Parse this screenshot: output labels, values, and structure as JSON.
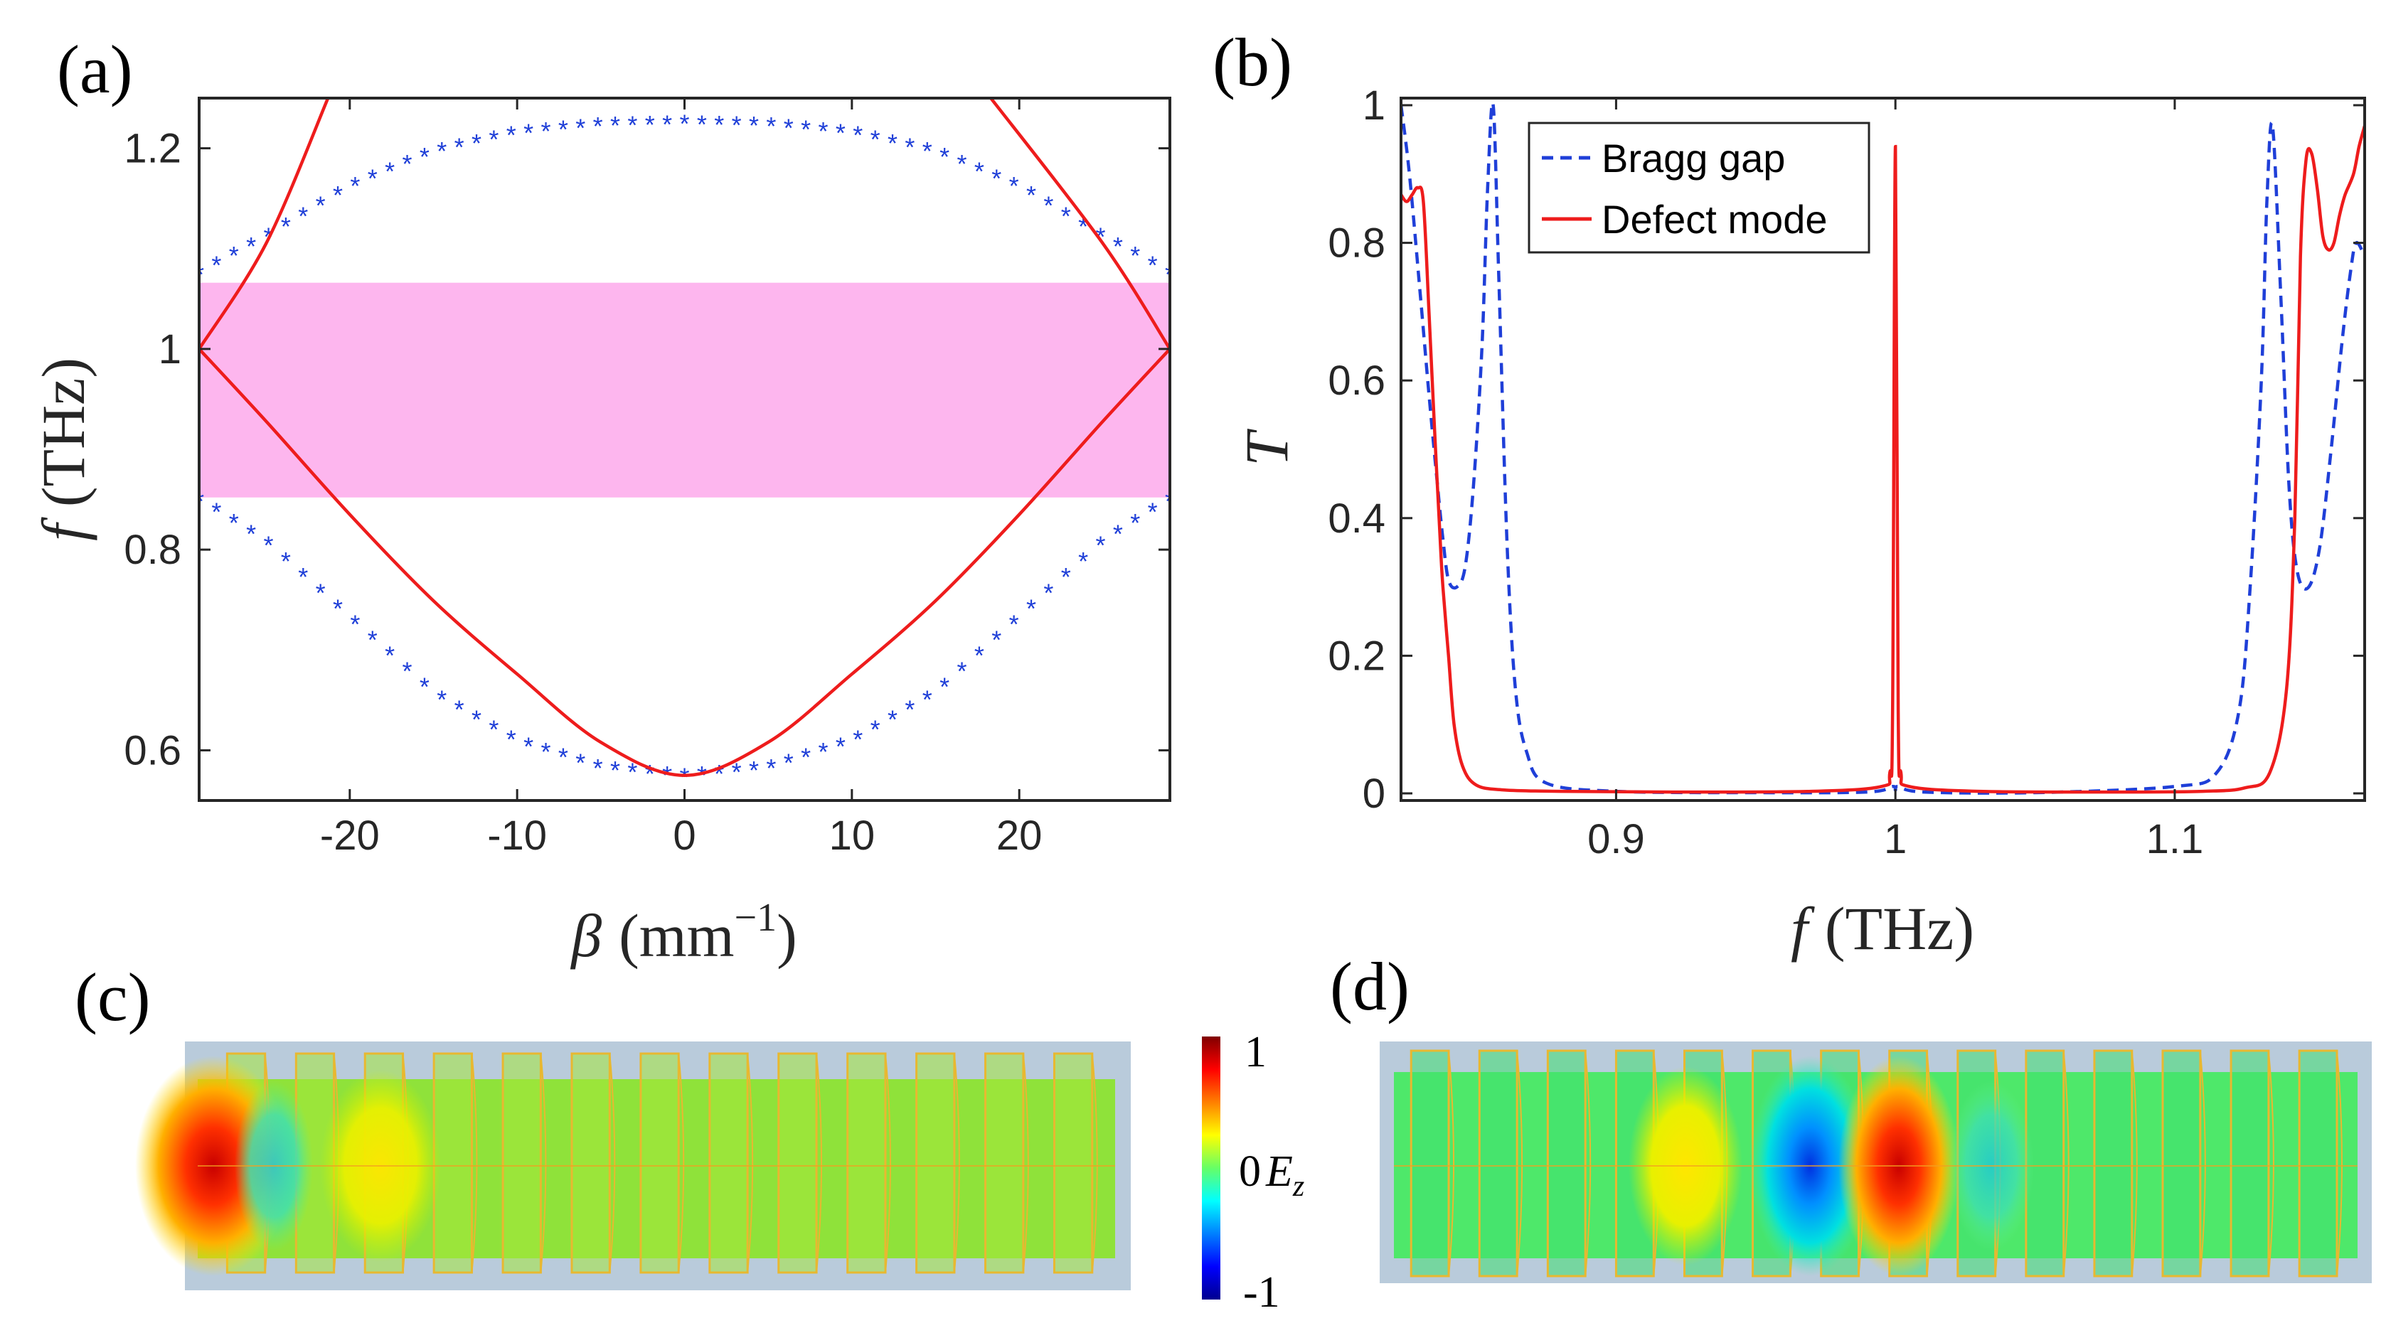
{
  "labels": {
    "a": "(a)",
    "b": "(b)",
    "c": "(c)",
    "d": "(d)"
  },
  "colors": {
    "band": "#fdb6ee",
    "stars": "#1f3fd8",
    "red": "#ee1c1c",
    "blue_dash": "#1f3fd8",
    "axis": "#262626"
  },
  "chart_data": [
    {
      "type": "line",
      "panel": "a",
      "xlabel": "β (mm⁻¹)",
      "ylabel": "f (THz)",
      "xlabel_parts": {
        "sym": "β",
        "unit": "(mm",
        "exp": "−1",
        "close": ")"
      },
      "ylabel_parts": {
        "sym": "f",
        "unit": "(THz)"
      },
      "xlim": [
        -29,
        29
      ],
      "ylim": [
        0.55,
        1.25
      ],
      "xticks": [
        -20,
        -10,
        0,
        10,
        20
      ],
      "xtick_labels": [
        "-20",
        "-10",
        "0",
        "10",
        "20"
      ],
      "yticks": [
        0.6,
        0.8,
        1.0,
        1.2
      ],
      "ytick_labels": [
        "0.6",
        "0.8",
        "1",
        "1.2"
      ],
      "band_gap": {
        "f_min": 0.852,
        "f_max": 1.066
      },
      "series": [
        {
          "style": "stars",
          "description_points": "upper band",
          "x": [
            -29,
            -25,
            -20,
            -15,
            -10,
            -5,
            0,
            5,
            10,
            15,
            20,
            25,
            29
          ],
          "y": [
            1.074,
            1.11,
            1.16,
            1.195,
            1.214,
            1.222,
            1.224,
            1.222,
            1.214,
            1.195,
            1.16,
            1.11,
            1.074
          ]
        },
        {
          "style": "stars",
          "x": [
            -29,
            -25,
            -20,
            -15,
            -10,
            -5,
            0,
            5,
            10,
            15,
            20,
            25,
            29
          ],
          "y": [
            0.848,
            0.806,
            0.73,
            0.655,
            0.607,
            0.581,
            0.573,
            0.581,
            0.607,
            0.655,
            0.73,
            0.806,
            0.848
          ]
        },
        {
          "style": "red",
          "x": [
            -29,
            -25,
            -20,
            -15,
            -10,
            -5,
            0,
            5,
            10,
            15,
            20,
            25,
            29
          ],
          "y": [
            1.0,
            0.928,
            0.835,
            0.749,
            0.676,
            0.608,
            0.575,
            0.608,
            0.676,
            0.749,
            0.835,
            0.928,
            1.0
          ]
        },
        {
          "style": "red",
          "x": [
            -29,
            -25,
            -21.3
          ],
          "y": [
            1.0,
            1.105,
            1.25
          ]
        },
        {
          "style": "red",
          "x": [
            18.3,
            25,
            29
          ],
          "y": [
            1.25,
            1.105,
            1.0
          ]
        }
      ]
    },
    {
      "type": "line",
      "panel": "b",
      "xlabel": "f (THz)",
      "ylabel": "T",
      "xlabel_parts": {
        "sym": "f",
        "unit": "(THz)"
      },
      "xlim": [
        0.823,
        1.168
      ],
      "ylim": [
        0,
        1
      ],
      "xticks": [
        0.9,
        1.0,
        1.1
      ],
      "xtick_labels": [
        "0.9",
        "1",
        "1.1"
      ],
      "yticks": [
        0,
        0.2,
        0.4,
        0.6,
        0.8,
        1.0
      ],
      "ytick_labels": [
        "0",
        "0.2",
        "0.4",
        "0.6",
        "0.8",
        "1"
      ],
      "legend": {
        "position": "top-left",
        "entries": [
          "Bragg gap",
          "Defect mode"
        ]
      },
      "series": [
        {
          "name": "Bragg gap",
          "style": "dash",
          "x": [
            0.823,
            0.826,
            0.83,
            0.833,
            0.836,
            0.838,
            0.84,
            0.843,
            0.846,
            0.849,
            0.852,
            0.854,
            0.856,
            0.858,
            0.861,
            0.864,
            0.868,
            0.875,
            0.9,
            0.95,
            0.99,
            0.999,
            1.0,
            1.001,
            1.01,
            1.05,
            1.1,
            1.115,
            1.123,
            1.127,
            1.131,
            1.133,
            1.135,
            1.138,
            1.141,
            1.144,
            1.148,
            1.152,
            1.156,
            1.16,
            1.163,
            1.165,
            1.168
          ],
          "y": [
            1.0,
            0.9,
            0.72,
            0.58,
            0.45,
            0.37,
            0.31,
            0.3,
            0.33,
            0.45,
            0.65,
            0.88,
            1.0,
            0.75,
            0.36,
            0.15,
            0.06,
            0.015,
            0.003,
            0.001,
            0.002,
            0.01,
            0.005,
            0.01,
            0.002,
            0.001,
            0.01,
            0.03,
            0.12,
            0.3,
            0.6,
            0.86,
            0.97,
            0.72,
            0.44,
            0.32,
            0.3,
            0.36,
            0.5,
            0.66,
            0.76,
            0.8,
            0.78
          ]
        },
        {
          "name": "Defect mode",
          "style": "solid",
          "x": [
            0.823,
            0.825,
            0.827,
            0.829,
            0.831,
            0.833,
            0.835,
            0.837,
            0.838,
            0.84,
            0.842,
            0.845,
            0.85,
            0.86,
            0.88,
            0.92,
            0.97,
            0.995,
            0.998,
            0.999,
            1.0,
            1.001,
            1.002,
            1.005,
            1.03,
            1.08,
            1.11,
            1.125,
            1.134,
            1.14,
            1.143,
            1.145,
            1.147,
            1.149,
            1.151,
            1.153,
            1.155,
            1.157,
            1.159,
            1.161,
            1.164,
            1.166,
            1.168
          ],
          "y": [
            0.87,
            0.86,
            0.87,
            0.88,
            0.86,
            0.7,
            0.53,
            0.37,
            0.3,
            0.2,
            0.1,
            0.04,
            0.012,
            0.005,
            0.003,
            0.002,
            0.003,
            0.01,
            0.03,
            0.12,
            0.94,
            0.12,
            0.03,
            0.01,
            0.003,
            0.002,
            0.003,
            0.008,
            0.03,
            0.15,
            0.4,
            0.78,
            0.92,
            0.93,
            0.88,
            0.81,
            0.79,
            0.8,
            0.84,
            0.87,
            0.9,
            0.94,
            0.97
          ]
        }
      ]
    },
    {
      "type": "heatmap",
      "panel": "c",
      "field": "Ez",
      "clim": [
        -1,
        1
      ]
    },
    {
      "type": "heatmap",
      "panel": "d",
      "field": "Ez",
      "clim": [
        -1,
        1
      ]
    }
  ],
  "colorbar": {
    "max_label": "1",
    "mid_label": "0",
    "min_label": "-1",
    "quantity_sym": "E",
    "quantity_sub": "z"
  }
}
